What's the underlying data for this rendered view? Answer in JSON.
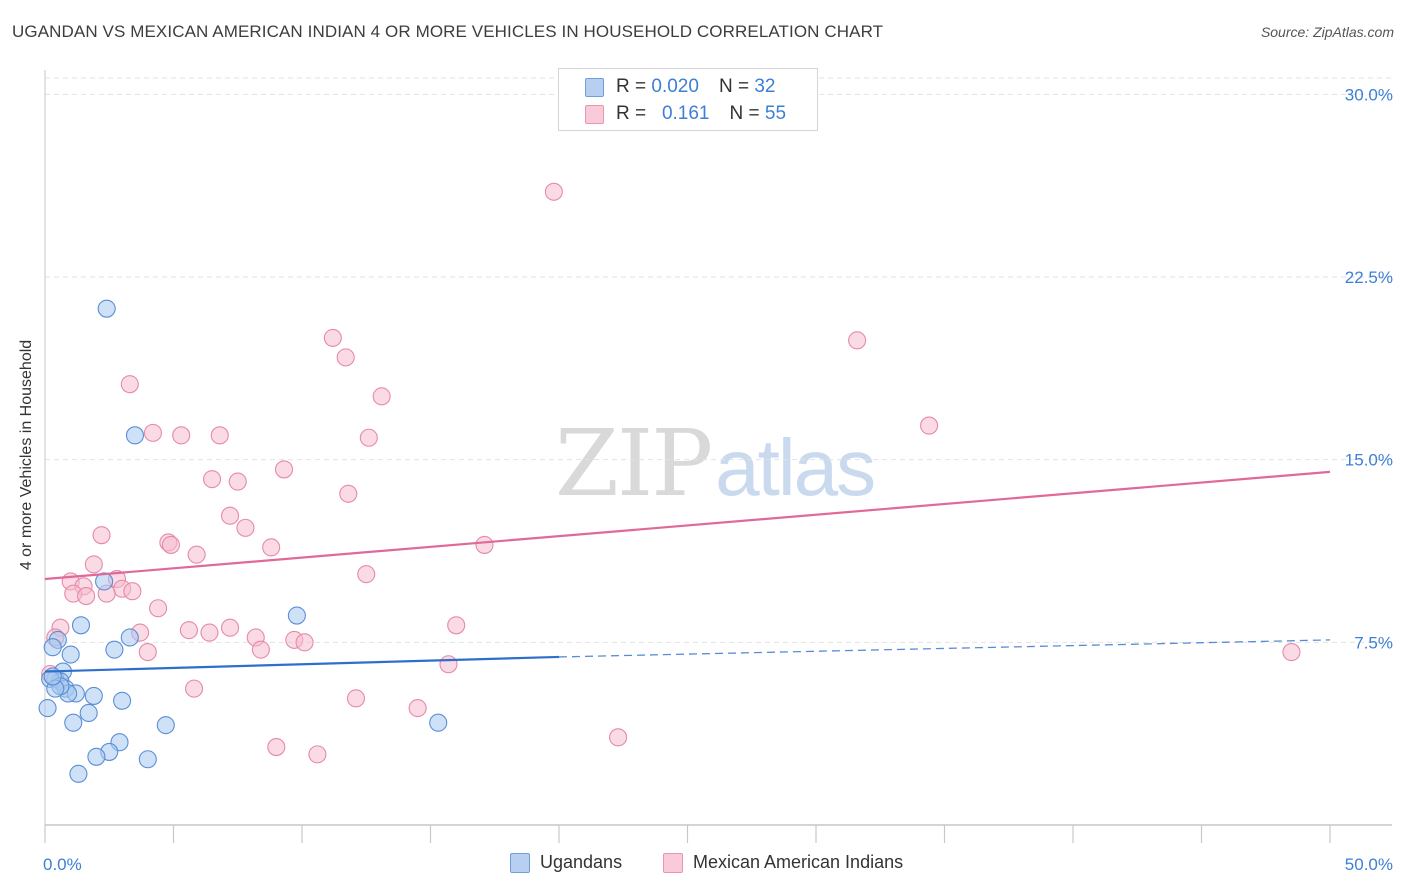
{
  "header": {
    "title": "UGANDAN VS MEXICAN AMERICAN INDIAN 4 OR MORE VEHICLES IN HOUSEHOLD CORRELATION CHART",
    "source": "Source: ZipAtlas.com"
  },
  "watermark": {
    "zip": "ZIP",
    "atlas": "atlas"
  },
  "legend_top": [
    {
      "r_label": "R =",
      "r_value": "0.020",
      "n_label": "N =",
      "n_value": "32"
    },
    {
      "r_label": "R =",
      "r_value": "0.161",
      "n_label": "N =",
      "n_value": "55"
    }
  ],
  "legend_bottom": {
    "series1": "Ugandans",
    "series2": "Mexican American Indians"
  },
  "colors": {
    "blue_fill": "#a8c8f0",
    "blue_stroke": "#5b8fd4",
    "blue_line": "#2f6fcc",
    "pink_fill": "#f6bccd",
    "pink_stroke": "#e68aa8",
    "pink_line": "#e0699a",
    "tick_text": "#3d7fd6",
    "grid": "#e2e2e2"
  },
  "chart_data": {
    "type": "scatter",
    "title": "UGANDAN VS MEXICAN AMERICAN INDIAN 4 OR MORE VEHICLES IN HOUSEHOLD CORRELATION CHART",
    "xlabel": "",
    "ylabel": "4 or more Vehicles in Household",
    "xlim": [
      0,
      50
    ],
    "ylim": [
      0,
      31
    ],
    "x_tick_labels": [
      {
        "value": 0,
        "label": "0.0%"
      },
      {
        "value": 50,
        "label": "50.0%"
      }
    ],
    "y_ticks": [
      {
        "value": 7.5,
        "label": "7.5%"
      },
      {
        "value": 15,
        "label": "15.0%"
      },
      {
        "value": 22.5,
        "label": "22.5%"
      },
      {
        "value": 30,
        "label": "30.0%"
      }
    ],
    "grid": "horizontal dashed",
    "legend": "top-center",
    "series": [
      {
        "name": "Ugandans",
        "color": "blue",
        "r": 0.02,
        "n": 32,
        "trend": {
          "x0": 0,
          "y0": 6.3,
          "x1": 20,
          "y1": 6.9,
          "dashed_to_x": 50,
          "dashed_to_y": 7.6
        },
        "points": [
          [
            2.4,
            21.2
          ],
          [
            3.5,
            16.0
          ],
          [
            2.3,
            10.0
          ],
          [
            1.4,
            8.2
          ],
          [
            3.3,
            7.7
          ],
          [
            2.7,
            7.2
          ],
          [
            0.5,
            7.6
          ],
          [
            0.3,
            7.3
          ],
          [
            1.0,
            7.0
          ],
          [
            0.7,
            6.3
          ],
          [
            0.4,
            6.0
          ],
          [
            0.6,
            5.9
          ],
          [
            0.2,
            6.0
          ],
          [
            0.8,
            5.6
          ],
          [
            1.2,
            5.4
          ],
          [
            0.9,
            5.4
          ],
          [
            0.6,
            5.7
          ],
          [
            3.0,
            5.1
          ],
          [
            1.7,
            4.6
          ],
          [
            1.1,
            4.2
          ],
          [
            4.7,
            4.1
          ],
          [
            0.1,
            4.8
          ],
          [
            2.9,
            3.4
          ],
          [
            2.5,
            3.0
          ],
          [
            2.0,
            2.8
          ],
          [
            4.0,
            2.7
          ],
          [
            1.3,
            2.1
          ],
          [
            9.8,
            8.6
          ],
          [
            15.3,
            4.2
          ],
          [
            0.4,
            5.6
          ],
          [
            1.9,
            5.3
          ],
          [
            0.3,
            6.1
          ]
        ]
      },
      {
        "name": "Mexican American Indians",
        "color": "pink",
        "r": 0.161,
        "n": 55,
        "trend": {
          "x0": 0,
          "y0": 10.1,
          "x1": 50,
          "y1": 14.5
        },
        "points": [
          [
            19.8,
            26.0
          ],
          [
            11.2,
            20.0
          ],
          [
            31.6,
            19.9
          ],
          [
            11.7,
            19.2
          ],
          [
            3.3,
            18.1
          ],
          [
            13.1,
            17.6
          ],
          [
            34.4,
            16.4
          ],
          [
            4.2,
            16.1
          ],
          [
            5.3,
            16.0
          ],
          [
            6.8,
            16.0
          ],
          [
            12.6,
            15.9
          ],
          [
            9.3,
            14.6
          ],
          [
            6.5,
            14.2
          ],
          [
            7.5,
            14.1
          ],
          [
            11.8,
            13.6
          ],
          [
            7.2,
            12.7
          ],
          [
            7.8,
            12.2
          ],
          [
            2.2,
            11.9
          ],
          [
            4.8,
            11.6
          ],
          [
            4.9,
            11.5
          ],
          [
            17.1,
            11.5
          ],
          [
            8.8,
            11.4
          ],
          [
            5.9,
            11.1
          ],
          [
            1.9,
            10.7
          ],
          [
            1.0,
            10.0
          ],
          [
            2.8,
            10.1
          ],
          [
            12.5,
            10.3
          ],
          [
            1.5,
            9.8
          ],
          [
            3.0,
            9.7
          ],
          [
            1.1,
            9.5
          ],
          [
            2.4,
            9.5
          ],
          [
            3.4,
            9.6
          ],
          [
            1.6,
            9.4
          ],
          [
            4.4,
            8.9
          ],
          [
            16.0,
            8.2
          ],
          [
            7.2,
            8.1
          ],
          [
            5.6,
            8.0
          ],
          [
            6.4,
            7.9
          ],
          [
            3.7,
            7.9
          ],
          [
            8.2,
            7.7
          ],
          [
            9.7,
            7.6
          ],
          [
            10.1,
            7.5
          ],
          [
            0.6,
            8.1
          ],
          [
            0.4,
            7.7
          ],
          [
            8.4,
            7.2
          ],
          [
            4.0,
            7.1
          ],
          [
            15.7,
            6.6
          ],
          [
            48.5,
            7.1
          ],
          [
            5.8,
            5.6
          ],
          [
            12.1,
            5.2
          ],
          [
            14.5,
            4.8
          ],
          [
            9.0,
            3.2
          ],
          [
            10.6,
            2.9
          ],
          [
            22.3,
            3.6
          ],
          [
            0.2,
            6.2
          ]
        ]
      }
    ]
  }
}
